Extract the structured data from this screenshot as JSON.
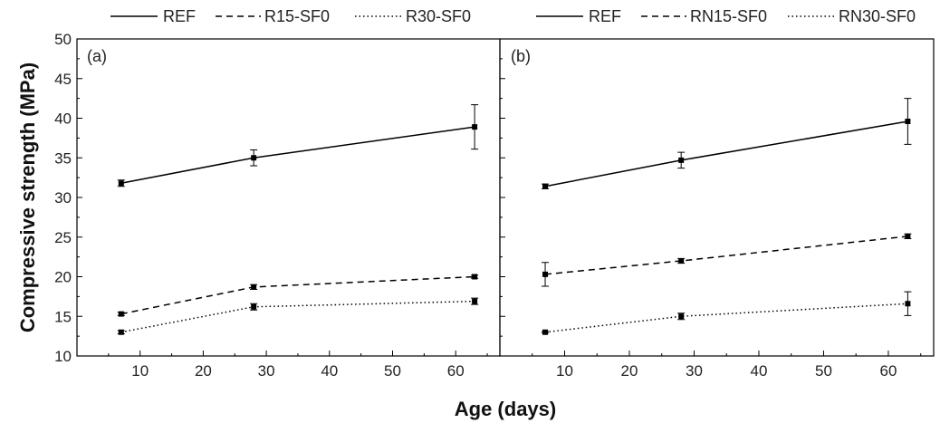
{
  "xlabel": "Age (days)",
  "ylabel": "Compressive strength (MPa)",
  "chart_data": [
    {
      "type": "line",
      "panel_label": "(a)",
      "xlabel": "Age (days)",
      "ylabel": "Compressive strength (MPa)",
      "xlim": [
        0,
        67
      ],
      "ylim": [
        10,
        50
      ],
      "xticks": [
        10,
        20,
        30,
        40,
        50,
        60
      ],
      "yticks": [
        10,
        15,
        20,
        25,
        30,
        35,
        40,
        45,
        50
      ],
      "grid": false,
      "legend_position": "top",
      "series": [
        {
          "name": "REF",
          "style": "solid",
          "x": [
            7,
            28,
            63
          ],
          "y": [
            31.8,
            35.0,
            38.9
          ],
          "err": [
            0.4,
            1.0,
            2.8
          ]
        },
        {
          "name": "R15-SF0",
          "style": "dashed",
          "x": [
            7,
            28,
            63
          ],
          "y": [
            15.3,
            18.7,
            20.0
          ],
          "err": [
            0.2,
            0.3,
            0.2
          ]
        },
        {
          "name": "R30-SF0",
          "style": "dotted",
          "x": [
            7,
            28,
            63
          ],
          "y": [
            13.0,
            16.2,
            16.9
          ],
          "err": [
            0.2,
            0.4,
            0.4
          ]
        }
      ]
    },
    {
      "type": "line",
      "panel_label": "(b)",
      "xlabel": "Age (days)",
      "ylabel": "Compressive strength (MPa)",
      "xlim": [
        0,
        67
      ],
      "ylim": [
        10,
        50
      ],
      "xticks": [
        10,
        20,
        30,
        40,
        50,
        60
      ],
      "yticks": [
        10,
        15,
        20,
        25,
        30,
        35,
        40,
        45,
        50
      ],
      "grid": false,
      "legend_position": "top",
      "series": [
        {
          "name": "REF",
          "style": "solid",
          "x": [
            7,
            28,
            63
          ],
          "y": [
            31.4,
            34.7,
            39.6
          ],
          "err": [
            0.3,
            1.0,
            2.9
          ]
        },
        {
          "name": "RN15-SF0",
          "style": "dashed",
          "x": [
            7,
            28,
            63
          ],
          "y": [
            20.3,
            22.0,
            25.1
          ],
          "err": [
            1.5,
            0.3,
            0.3
          ]
        },
        {
          "name": "RN30-SF0",
          "style": "dotted",
          "x": [
            7,
            28,
            63
          ],
          "y": [
            13.0,
            15.0,
            16.6
          ],
          "err": [
            0.1,
            0.4,
            1.5
          ]
        }
      ]
    }
  ]
}
